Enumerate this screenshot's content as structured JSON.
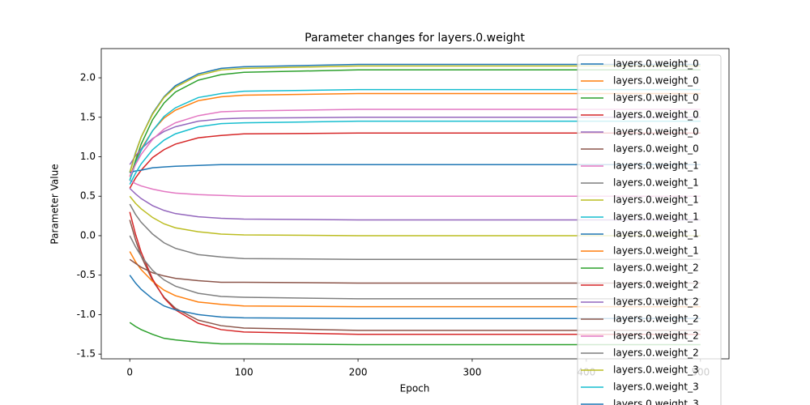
{
  "chart_data": {
    "type": "line",
    "title": "Parameter changes for layers.0.weight",
    "x_label": "Epoch",
    "y_label": "Parameter Value",
    "x": [
      0,
      5,
      10,
      20,
      30,
      40,
      60,
      80,
      100,
      200,
      300,
      400,
      500
    ],
    "series": [
      {
        "name": "layers.0.weight_0",
        "color": "#1f77b4",
        "values": [
          0.8,
          1.05,
          1.25,
          1.55,
          1.76,
          1.9,
          2.05,
          2.12,
          2.14,
          2.17,
          2.17,
          2.17,
          2.17
        ]
      },
      {
        "name": "layers.0.weight_0",
        "color": "#ff7f0e",
        "values": [
          0.75,
          0.94,
          1.1,
          1.33,
          1.49,
          1.59,
          1.71,
          1.76,
          1.78,
          1.8,
          1.8,
          1.8,
          1.8
        ]
      },
      {
        "name": "layers.0.weight_0",
        "color": "#2ca02c",
        "values": [
          0.7,
          0.95,
          1.16,
          1.47,
          1.68,
          1.82,
          1.97,
          2.04,
          2.07,
          2.1,
          2.1,
          2.1,
          2.1
        ]
      },
      {
        "name": "layers.0.weight_0",
        "color": "#d62728",
        "values": [
          0.6,
          0.73,
          0.83,
          0.99,
          1.09,
          1.16,
          1.24,
          1.27,
          1.29,
          1.3,
          1.3,
          1.3,
          1.3
        ]
      },
      {
        "name": "layers.0.weight_0",
        "color": "#9467bd",
        "values": [
          0.9,
          1.01,
          1.1,
          1.23,
          1.32,
          1.38,
          1.45,
          1.48,
          1.49,
          1.5,
          1.5,
          1.5,
          1.5
        ]
      },
      {
        "name": "layers.0.weight_0",
        "color": "#8c564b",
        "values": [
          0.2,
          -0.05,
          -0.26,
          -0.57,
          -0.78,
          -0.92,
          -1.07,
          -1.14,
          -1.17,
          -1.2,
          -1.2,
          -1.2,
          -1.2
        ]
      },
      {
        "name": "layers.0.weight_1",
        "color": "#e377c2",
        "values": [
          0.7,
          0.66,
          0.63,
          0.59,
          0.56,
          0.54,
          0.52,
          0.51,
          0.5,
          0.5,
          0.5,
          0.5,
          0.5
        ]
      },
      {
        "name": "layers.0.weight_1",
        "color": "#7f7f7f",
        "values": [
          0.4,
          0.27,
          0.17,
          0.02,
          -0.09,
          -0.16,
          -0.24,
          -0.27,
          -0.29,
          -0.3,
          -0.3,
          -0.3,
          -0.3
        ]
      },
      {
        "name": "layers.0.weight_1",
        "color": "#bcbd22",
        "values": [
          0.8,
          1.04,
          1.25,
          1.54,
          1.75,
          1.88,
          2.03,
          2.1,
          2.12,
          2.15,
          2.15,
          2.15,
          2.15
        ]
      },
      {
        "name": "layers.0.weight_1",
        "color": "#17becf",
        "values": [
          0.7,
          0.91,
          1.08,
          1.33,
          1.51,
          1.62,
          1.75,
          1.8,
          1.83,
          1.85,
          1.85,
          1.85,
          1.85
        ]
      },
      {
        "name": "layers.0.weight_1",
        "color": "#1f77b4",
        "values": [
          0.8,
          0.82,
          0.83,
          0.86,
          0.87,
          0.88,
          0.89,
          0.9,
          0.9,
          0.9,
          0.9,
          0.9,
          0.9
        ]
      },
      {
        "name": "layers.0.weight_1",
        "color": "#ff7f0e",
        "values": [
          -0.2,
          -0.33,
          -0.43,
          -0.58,
          -0.69,
          -0.76,
          -0.84,
          -0.87,
          -0.89,
          -0.9,
          -0.9,
          -0.9,
          -0.9
        ]
      },
      {
        "name": "layers.0.weight_2",
        "color": "#2ca02c",
        "values": [
          -1.1,
          -1.15,
          -1.19,
          -1.25,
          -1.3,
          -1.32,
          -1.35,
          -1.37,
          -1.37,
          -1.38,
          -1.38,
          -1.38,
          -1.38
        ]
      },
      {
        "name": "layers.0.weight_2",
        "color": "#d62728",
        "values": [
          0.3,
          0.02,
          -0.21,
          -0.55,
          -0.79,
          -0.94,
          -1.11,
          -1.19,
          -1.22,
          -1.25,
          -1.25,
          -1.25,
          -1.25
        ]
      },
      {
        "name": "layers.0.weight_2",
        "color": "#9467bd",
        "values": [
          0.6,
          0.53,
          0.47,
          0.38,
          0.32,
          0.28,
          0.24,
          0.22,
          0.21,
          0.2,
          0.2,
          0.2,
          0.2
        ]
      },
      {
        "name": "layers.0.weight_2",
        "color": "#8c564b",
        "values": [
          -0.3,
          -0.35,
          -0.4,
          -0.47,
          -0.51,
          -0.54,
          -0.57,
          -0.59,
          -0.59,
          -0.6,
          -0.6,
          -0.6,
          -0.6
        ]
      },
      {
        "name": "layers.0.weight_2",
        "color": "#e377c2",
        "values": [
          0.75,
          0.9,
          1.03,
          1.22,
          1.35,
          1.43,
          1.52,
          1.57,
          1.58,
          1.6,
          1.6,
          1.6,
          1.6
        ]
      },
      {
        "name": "layers.0.weight_2",
        "color": "#7f7f7f",
        "values": [
          0,
          -0.14,
          -0.26,
          -0.44,
          -0.56,
          -0.64,
          -0.73,
          -0.77,
          -0.78,
          -0.8,
          -0.8,
          -0.8,
          -0.8
        ]
      },
      {
        "name": "layers.0.weight_3",
        "color": "#bcbd22",
        "values": [
          0.5,
          0.41,
          0.34,
          0.23,
          0.15,
          0.1,
          0.05,
          0.02,
          0.01,
          0,
          0,
          0,
          0
        ]
      },
      {
        "name": "layers.0.weight_3",
        "color": "#17becf",
        "values": [
          0.65,
          0.79,
          0.91,
          1.09,
          1.21,
          1.29,
          1.38,
          1.42,
          1.43,
          1.45,
          1.45,
          1.45,
          1.45
        ]
      },
      {
        "name": "layers.0.weight_3",
        "color": "#1f77b4",
        "values": [
          -0.5,
          -0.6,
          -0.68,
          -0.8,
          -0.89,
          -0.94,
          -1.0,
          -1.03,
          -1.04,
          -1.05,
          -1.05,
          -1.05,
          -1.05
        ]
      }
    ],
    "xlim": [
      -25,
      525
    ],
    "xticks": [
      0,
      100,
      200,
      300,
      400,
      500
    ],
    "ylim": [
      -1.56,
      2.37
    ],
    "yticks": [
      -1.5,
      {
        "value": -1,
        "label": "-1.0"
      },
      -0.5,
      {
        "value": 0,
        "label": "0.0"
      },
      0.5,
      {
        "value": 1,
        "label": "1.0"
      },
      1.5,
      {
        "value": 2,
        "label": "2.0"
      }
    ],
    "legend": "upper right"
  }
}
